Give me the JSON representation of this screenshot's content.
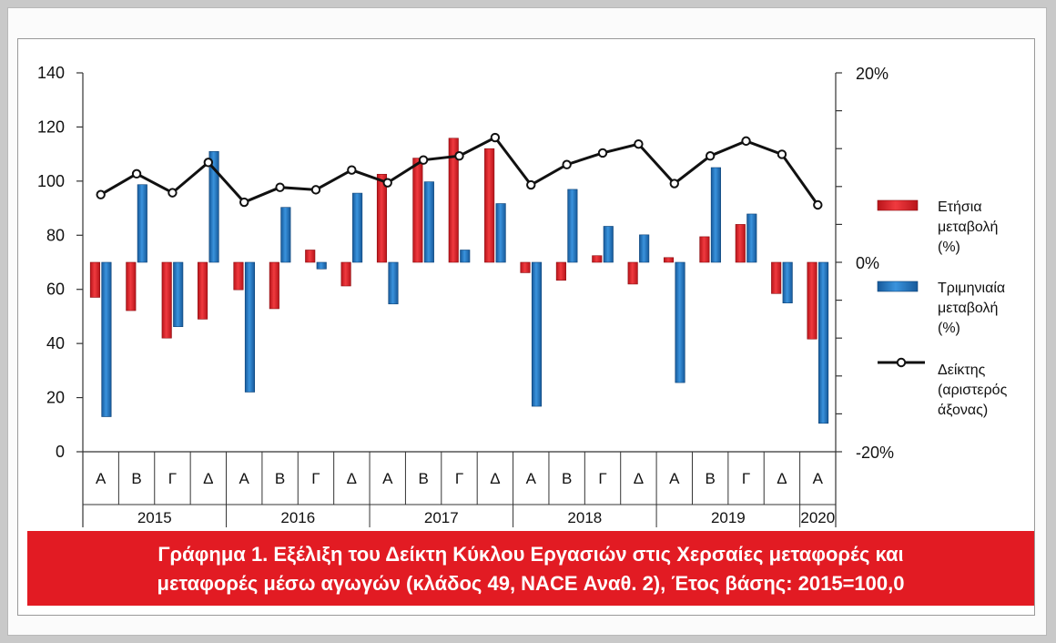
{
  "chart_data": {
    "type": "bar+line",
    "caption_line1": "Γράφημα 1. Εξέλιξη του Δείκτη Κύκλου Εργασιών στις Χερσαίες μεταφορές και",
    "caption_line2": "μεταφορές μέσω αγωγών (κλάδος 49, NACE Αναθ. 2), Έτος βάσης: 2015=100,0",
    "categories": [
      "Α",
      "Β",
      "Γ",
      "Δ",
      "Α",
      "Β",
      "Γ",
      "Δ",
      "Α",
      "Β",
      "Γ",
      "Δ",
      "Α",
      "Β",
      "Γ",
      "Δ",
      "Α",
      "Β",
      "Γ",
      "Δ",
      "Α"
    ],
    "years": [
      {
        "label": "2015",
        "quarters": 4
      },
      {
        "label": "2016",
        "quarters": 4
      },
      {
        "label": "2017",
        "quarters": 4
      },
      {
        "label": "2018",
        "quarters": 4
      },
      {
        "label": "2019",
        "quarters": 4
      },
      {
        "label": "2020",
        "quarters": 1
      }
    ],
    "left_axis": {
      "min": 0,
      "max": 140,
      "ticks": [
        "0",
        "20",
        "40",
        "60",
        "80",
        "100",
        "120",
        "140"
      ]
    },
    "right_axis": {
      "min": -20,
      "max": 20,
      "ticks": [
        "-20%",
        "0%",
        "20%"
      ]
    },
    "series": [
      {
        "name": "Ετήσια μεταβολή (%)",
        "axis": "right",
        "color": "#e21b23",
        "values": [
          -3.7,
          -5.1,
          -8.0,
          -6.0,
          -2.9,
          -4.9,
          1.3,
          -2.5,
          9.3,
          11.0,
          13.1,
          12.0,
          -1.1,
          -1.9,
          0.7,
          -2.3,
          0.5,
          2.7,
          4.0,
          -3.3,
          -8.1
        ]
      },
      {
        "name": "Τριμηνιαία μεταβολή (%)",
        "axis": "right",
        "color": "#1f78c1",
        "values": [
          -16.3,
          8.2,
          -6.8,
          11.7,
          -13.7,
          5.8,
          -0.7,
          7.3,
          -4.4,
          8.5,
          1.3,
          6.2,
          -15.2,
          7.7,
          3.8,
          2.9,
          -12.7,
          10.0,
          5.1,
          -4.3,
          -17.0
        ]
      },
      {
        "name": "Δείκτης (αριστερός άξονας)",
        "axis": "left",
        "color": "#111111",
        "values": [
          95.0,
          102.7,
          95.7,
          106.9,
          92.2,
          97.7,
          96.8,
          104.1,
          99.4,
          107.8,
          109.3,
          116.1,
          98.6,
          106.1,
          110.4,
          113.7,
          99.1,
          109.3,
          114.8,
          109.9,
          91.2
        ]
      }
    ],
    "legend_position": "right",
    "grid": false
  },
  "legend": [
    {
      "lines": [
        "Ετήσια",
        "μεταβολή",
        "(%)"
      ]
    },
    {
      "lines": [
        "Τριμηνιαία",
        "μεταβολή",
        "(%)"
      ]
    },
    {
      "lines": [
        "Δείκτης",
        "(αριστερός",
        "άξονας)"
      ]
    }
  ]
}
